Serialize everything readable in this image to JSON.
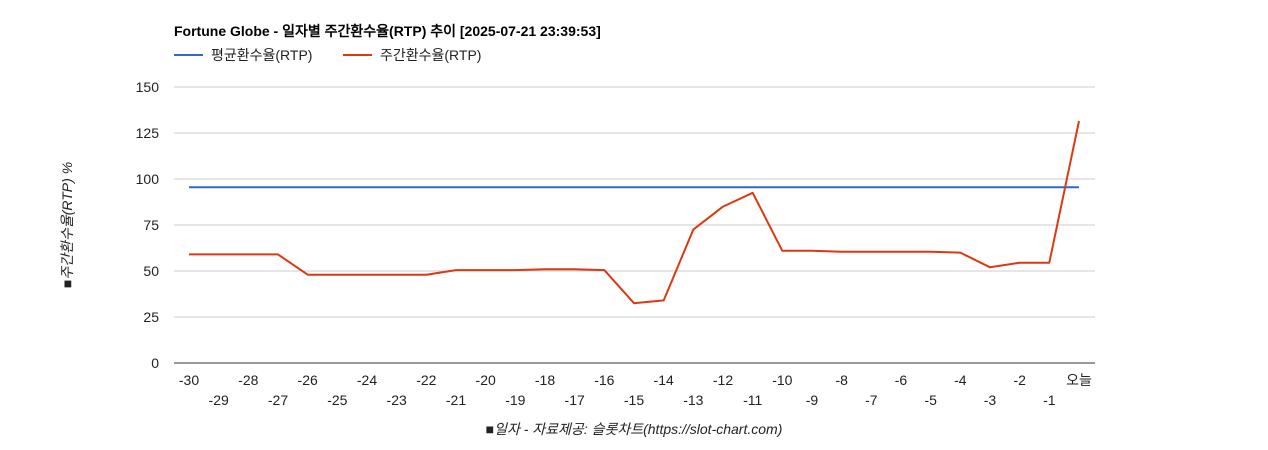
{
  "chart_data": {
    "type": "line",
    "title": "Fortune Globe - 일자별 주간환수율(RTP) 추이 [2025-07-21 23:39:53]",
    "xlabel": "■일자 - 자료제공: 슬롯차트(https://slot-chart.com)",
    "ylabel": "■주간환수율(RTP) %",
    "ylim": [
      0,
      150
    ],
    "y_ticks": [
      0,
      25,
      50,
      75,
      100,
      125,
      150
    ],
    "x": [
      "-30",
      "-29",
      "-28",
      "-27",
      "-26",
      "-25",
      "-24",
      "-23",
      "-22",
      "-21",
      "-20",
      "-19",
      "-18",
      "-17",
      "-16",
      "-15",
      "-14",
      "-13",
      "-12",
      "-11",
      "-10",
      "-9",
      "-8",
      "-7",
      "-6",
      "-5",
      "-4",
      "-3",
      "-2",
      "-1",
      "오늘"
    ],
    "grid": true,
    "legend_position": "top-left",
    "series": [
      {
        "name": "평균환수율(RTP)",
        "color": "#3366cc",
        "values": [
          95.5,
          95.5,
          95.5,
          95.5,
          95.5,
          95.5,
          95.5,
          95.5,
          95.5,
          95.5,
          95.5,
          95.5,
          95.5,
          95.5,
          95.5,
          95.5,
          95.5,
          95.5,
          95.5,
          95.5,
          95.5,
          95.5,
          95.5,
          95.5,
          95.5,
          95.5,
          95.5,
          95.5,
          95.5,
          95.5,
          95.5
        ]
      },
      {
        "name": "주간환수율(RTP)",
        "color": "#dc3912",
        "values": [
          59,
          59,
          59,
          59,
          48,
          48,
          48,
          48,
          48,
          50.5,
          50.5,
          50.5,
          51,
          51,
          50.5,
          32.5,
          34,
          72.5,
          85,
          92.5,
          61,
          61,
          60.5,
          60.5,
          60.5,
          60.5,
          60,
          52,
          54.5,
          54.5,
          131.5
        ]
      }
    ]
  }
}
